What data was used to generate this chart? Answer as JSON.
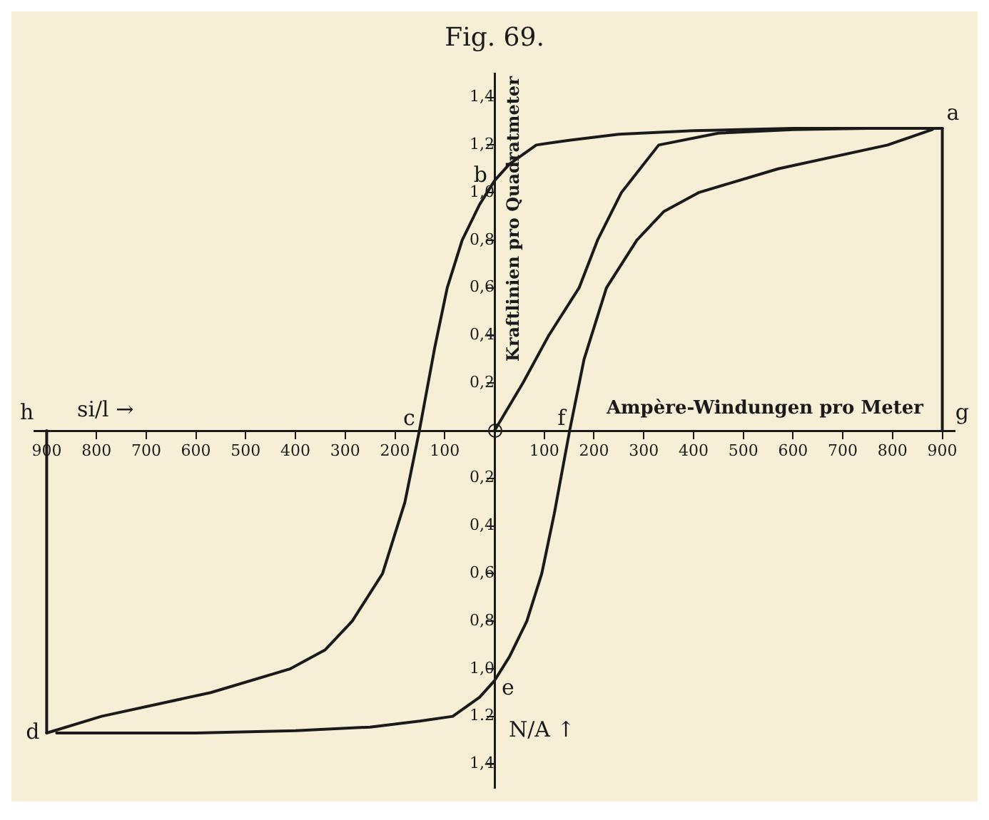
{
  "chart_data": {
    "type": "line",
    "title": "Fig. 69.",
    "xlabel": "Ampère-Windungen pro Meter",
    "ylabel": "Kraftlinien pro Quadratmeter",
    "xlim": [
      -925,
      925
    ],
    "ylim": [
      -1.5,
      1.5
    ],
    "xticks": [
      {
        "value": -900,
        "label": "900"
      },
      {
        "value": -800,
        "label": "800"
      },
      {
        "value": -700,
        "label": "700"
      },
      {
        "value": -600,
        "label": "600"
      },
      {
        "value": -500,
        "label": "500"
      },
      {
        "value": -400,
        "label": "400"
      },
      {
        "value": -300,
        "label": "300"
      },
      {
        "value": -200,
        "label": "200"
      },
      {
        "value": -100,
        "label": "100"
      },
      100,
      200,
      300,
      400,
      500,
      600,
      700,
      800,
      900
    ],
    "yticks": [
      {
        "value": -1.4,
        "label": "1,4"
      },
      {
        "value": -1.2,
        "label": "1.2"
      },
      {
        "value": -1,
        "label": "1,0"
      },
      {
        "value": -0.8,
        "label": "0,8"
      },
      {
        "value": -0.6,
        "label": "0,6"
      },
      {
        "value": -0.4,
        "label": "0,4"
      },
      {
        "value": -0.2,
        "label": "0,2"
      },
      {
        "value": 0.2,
        "label": "0,2"
      },
      {
        "value": 0.4,
        "label": "0,4"
      },
      {
        "value": 0.6,
        "label": "0,6"
      },
      {
        "value": 0.8,
        "label": "0,8"
      },
      {
        "value": 1,
        "label": "1,0"
      },
      {
        "value": 1.2,
        "label": "1,2"
      },
      {
        "value": 1.4,
        "label": "1,4"
      }
    ],
    "series": [
      {
        "color": "#1a1a1a",
        "x": [
          900,
          600,
          400,
          250,
          150,
          84,
          30,
          0,
          -30,
          -65,
          -95,
          -120,
          -151,
          -180,
          -225,
          -286,
          -340,
          -410,
          -570,
          -790,
          -900
        ],
        "values": [
          1.27,
          1.27,
          1.26,
          1.245,
          1.22,
          1.2,
          1.12,
          1.05,
          0.95,
          0.8,
          0.6,
          0.35,
          0,
          -0.3,
          -0.6,
          -0.8,
          -0.92,
          -1,
          -1.1,
          -1.2,
          -1.27
        ]
      },
      {
        "color": "#1a1a1a",
        "x": [
          -880,
          -600,
          -400,
          -250,
          -150,
          -84,
          -30,
          0,
          30,
          65,
          95,
          120,
          151,
          180,
          225,
          286,
          340,
          410,
          570,
          790,
          880
        ],
        "values": [
          -1.27,
          -1.27,
          -1.26,
          -1.245,
          -1.22,
          -1.2,
          -1.12,
          -1.05,
          -0.95,
          -0.8,
          -0.6,
          -0.35,
          0,
          0.3,
          0.6,
          0.8,
          0.92,
          1,
          1.1,
          1.2,
          1.265
        ]
      },
      {
        "color": "#1a1a1a",
        "x": [
          0,
          57,
          109,
          170,
          207,
          255,
          330,
          450,
          600,
          750,
          900
        ],
        "values": [
          0,
          0.2,
          0.4,
          0.6,
          0.8,
          1,
          1.2,
          1.25,
          1.265,
          1.27,
          1.27
        ]
      },
      {
        "color": "#1a1a1a",
        "x": [
          -900,
          -900
        ],
        "values": [
          0,
          -1.27
        ]
      },
      {
        "color": "#1a1a1a",
        "x": [
          900,
          900
        ],
        "values": [
          1.27,
          0
        ]
      }
    ],
    "annotations": [
      {
        "text": "a",
        "x": 900,
        "y": 1.27
      },
      {
        "text": "b",
        "x": 0,
        "y": 1.05
      },
      {
        "text": "c",
        "x": -151,
        "y": 0
      },
      {
        "text": "d",
        "x": -900,
        "y": -1.27
      },
      {
        "text": "e",
        "x": 0,
        "y": -1.05
      },
      {
        "text": "f",
        "x": 151,
        "y": 0
      },
      "g",
      "h",
      "si/l →",
      "N/A ↑"
    ]
  }
}
